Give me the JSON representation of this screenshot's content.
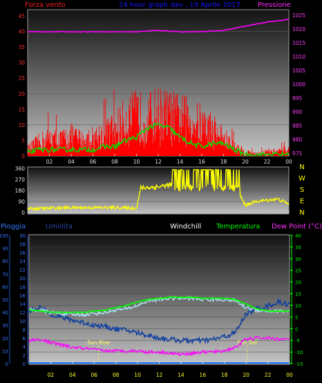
{
  "wind_panel": {
    "left_label": "Forza vento",
    "title": "24 hour graph dav , 19 Aprile 2017",
    "right_label": "Pressione",
    "left_ticks": [
      "0",
      "5",
      "10",
      "15",
      "20",
      "25",
      "30",
      "35",
      "40",
      "45"
    ],
    "right_ticks": [
      "975",
      "980",
      "985",
      "990",
      "995",
      "1000",
      "1005",
      "1010",
      "1015",
      "1020",
      "1025"
    ],
    "x_ticks": [
      "02",
      "04",
      "06",
      "08",
      "10",
      "12",
      "14",
      "16",
      "18",
      "20",
      "22",
      "00"
    ]
  },
  "dir_panel": {
    "left_ticks": [
      "0",
      "90",
      "180",
      "270",
      "360"
    ],
    "compass": [
      "N",
      "W",
      "S",
      "E",
      "N"
    ],
    "x_ticks": [
      "02",
      "04",
      "06",
      "08",
      "10",
      "12",
      "14",
      "16",
      "18",
      "20",
      "22",
      "00"
    ]
  },
  "temp_panel": {
    "legend": {
      "rain": "Pioggia",
      "humidity": "Umidita",
      "windchill": "Windchill",
      "temperature": "Temperatura",
      "dewpoint": "Dew Point (°C)"
    },
    "humidity_ticks": [
      "0",
      "10",
      "20",
      "30",
      "40",
      "50",
      "60",
      "70",
      "80",
      "90",
      "100"
    ],
    "rain_ticks": [
      "0",
      "2",
      "4",
      "6",
      "8",
      "10",
      "12",
      "14",
      "16",
      "18",
      "20",
      "22",
      "24",
      "26",
      "28",
      "30"
    ],
    "temp_ticks": [
      "-15",
      "-10",
      "-5",
      "0",
      "5",
      "10",
      "15",
      "20",
      "25",
      "30",
      "35",
      "40"
    ],
    "x_ticks": [
      "02",
      "04",
      "06",
      "08",
      "10",
      "12",
      "14",
      "16",
      "18",
      "20",
      "22",
      "00"
    ],
    "sunrise_label": "Sun Rise",
    "sunset_label": "Sun Set",
    "sunrise_hour": 6.4,
    "sunset_hour": 20.1
  },
  "colors": {
    "wind": "#ff0000",
    "gust_avg": "#00e000",
    "pressure": "#ff00ff",
    "direction": "#ffff00",
    "temperature": "#00ff00",
    "windchill": "#a8e8f0",
    "humidity": "#1040a0",
    "dewpoint": "#ff00ff",
    "rain": "#1070ff",
    "title": "#1818ff"
  },
  "chart_data": [
    {
      "type": "line",
      "title": "24 hour graph dav , 19 Aprile 2017",
      "xlabel": "",
      "ylabel": "Forza vento",
      "y2label": "Pressione",
      "ylim": [
        0,
        47
      ],
      "y2lim": [
        974,
        1027
      ],
      "xlim": [
        0,
        24
      ],
      "series": [
        {
          "name": "Forza vento",
          "axis": "left",
          "x": [
            0,
            1,
            2,
            3,
            4,
            5,
            6,
            7,
            8,
            9,
            10,
            11,
            12,
            13,
            14,
            15,
            16,
            17,
            18,
            19,
            20,
            21,
            22,
            23,
            24
          ],
          "values": [
            3,
            6,
            8,
            7,
            9,
            7,
            8,
            10,
            12,
            16,
            18,
            17,
            19,
            18,
            17,
            16,
            14,
            12,
            8,
            4,
            2,
            1,
            2,
            2,
            3
          ]
        },
        {
          "name": "",
          "axis": "left",
          "x": [
            0,
            1,
            2,
            3,
            4,
            5,
            6,
            7,
            8,
            9,
            10,
            11,
            12,
            13,
            14,
            15,
            16,
            17,
            18,
            19,
            20,
            21,
            22,
            23,
            24
          ],
          "values": [
            1,
            2,
            2,
            2,
            2,
            2,
            2,
            3,
            3,
            5,
            6,
            9,
            10,
            9,
            6,
            4,
            3,
            4,
            4,
            2,
            0.5,
            0.3,
            0.5,
            0.5,
            0.5
          ]
        },
        {
          "name": "Pressione",
          "axis": "right",
          "x": [
            0,
            2,
            4,
            6,
            8,
            10,
            12,
            14,
            16,
            18,
            20,
            22,
            24
          ],
          "values": [
            1019,
            1019,
            1019,
            1019,
            1019,
            1019,
            1019.5,
            1019,
            1019,
            1019.5,
            1021,
            1022.5,
            1023.5
          ]
        }
      ]
    },
    {
      "type": "line",
      "ylim": [
        0,
        360
      ],
      "xlim": [
        0,
        24
      ],
      "series": [
        {
          "name": "",
          "x": [
            0,
            2,
            4,
            6,
            8,
            10,
            10.4,
            12,
            13.5,
            14,
            15,
            16,
            17,
            18,
            19,
            20,
            21,
            22,
            23,
            24
          ],
          "values": [
            30,
            35,
            40,
            40,
            40,
            35,
            200,
            210,
            230,
            350,
            200,
            300,
            200,
            270,
            220,
            60,
            90,
            100,
            110,
            70
          ]
        }
      ]
    },
    {
      "type": "line",
      "xlim": [
        0,
        24
      ],
      "y_humidity_lim": [
        0,
        100
      ],
      "y_rain_lim": [
        0,
        30
      ],
      "y_temp_lim": [
        -15,
        40
      ],
      "series": [
        {
          "name": "Umidita",
          "axis": "humidity",
          "x": [
            0,
            1,
            2,
            3,
            4,
            5,
            6,
            7,
            8,
            9,
            10,
            11,
            12,
            13,
            14,
            15,
            16,
            17,
            18,
            19,
            20,
            21,
            22,
            23,
            24
          ],
          "values": [
            41,
            44,
            39,
            36,
            34,
            32,
            30,
            29,
            27,
            26,
            24,
            22,
            20,
            19,
            18,
            18,
            18,
            19,
            21,
            24,
            39,
            43,
            45,
            48,
            46
          ]
        },
        {
          "name": "Windchill",
          "axis": "temp",
          "x": [
            0,
            1,
            2,
            3,
            4,
            5,
            6,
            7,
            8,
            9,
            10,
            11,
            12,
            13,
            14,
            15,
            16,
            17,
            18,
            19,
            20,
            21,
            22,
            23,
            24
          ],
          "values": [
            8,
            8,
            7,
            6.5,
            6,
            6,
            6.5,
            7,
            8,
            8.5,
            10,
            12,
            12.5,
            13,
            13,
            13,
            12.5,
            12.5,
            12.5,
            12,
            9,
            8,
            7.5,
            7.5,
            7.5
          ]
        },
        {
          "name": "Temperatura",
          "axis": "temp",
          "x": [
            0,
            1,
            2,
            3,
            4,
            5,
            6,
            7,
            8,
            9,
            10,
            11,
            12,
            13,
            14,
            15,
            16,
            17,
            18,
            19,
            20,
            21,
            22,
            23,
            24
          ],
          "values": [
            8,
            7.5,
            7,
            7,
            7,
            7,
            7.5,
            8,
            9,
            10,
            11.5,
            12.5,
            13,
            13.5,
            13.5,
            13.5,
            13,
            13,
            13,
            12.5,
            10.5,
            8.5,
            7.5,
            7.5,
            7.5
          ]
        },
        {
          "name": "Dew Point (°C)",
          "axis": "temp",
          "x": [
            0,
            1,
            2,
            3,
            4,
            5,
            6,
            7,
            8,
            9,
            10,
            11,
            12,
            13,
            14,
            15,
            16,
            17,
            18,
            19,
            20,
            21,
            22,
            23,
            24
          ],
          "values": [
            -5,
            -4.5,
            -6,
            -7,
            -8,
            -8.5,
            -9,
            -9.5,
            -9.5,
            -9.5,
            -9.5,
            -10,
            -10,
            -10.5,
            -11,
            -10.5,
            -10,
            -10,
            -9.5,
            -8,
            -4.5,
            -4,
            -4,
            -4.5,
            -4.5
          ]
        },
        {
          "name": "Pioggia",
          "axis": "rain",
          "x": [
            0,
            24
          ],
          "values": [
            0,
            0
          ]
        }
      ]
    }
  ]
}
